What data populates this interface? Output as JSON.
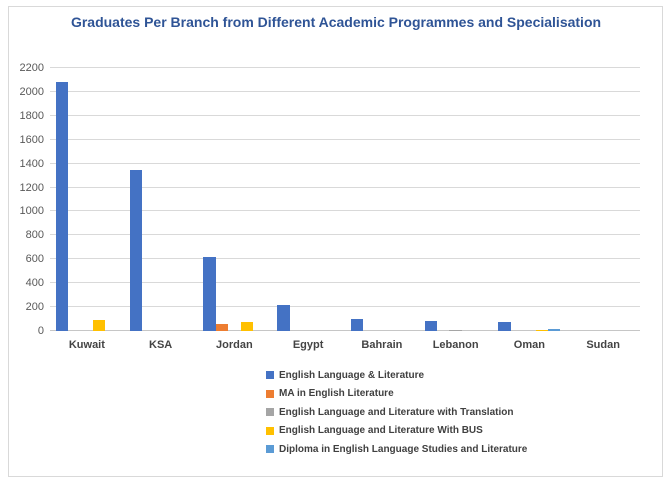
{
  "title": "Graduates Per Branch from Different Academic Programmes and Specialisation",
  "chart_data": {
    "type": "bar",
    "title": "Graduates Per Branch from Different Academic Programmes and Specialisation",
    "xlabel": "",
    "ylabel": "",
    "categories": [
      "Kuwait",
      "KSA",
      "Jordan",
      "Egypt",
      "Bahrain",
      "Lebanon",
      "Oman",
      "Sudan"
    ],
    "series": [
      {
        "name": "English Language & Literature",
        "color": "#4472C4",
        "values": [
          2085,
          1350,
          615,
          220,
          100,
          85,
          78,
          0
        ]
      },
      {
        "name": "MA in English Literature",
        "color": "#ED7D31",
        "values": [
          0,
          0,
          60,
          0,
          0,
          0,
          0,
          0
        ]
      },
      {
        "name": "English Language and Literature with Translation",
        "color": "#A5A5A5",
        "values": [
          0,
          0,
          0,
          0,
          0,
          12,
          0,
          0
        ]
      },
      {
        "name": "English Language and Literature With BUS",
        "color": "#FFC000",
        "values": [
          95,
          0,
          75,
          0,
          0,
          0,
          10,
          0
        ]
      },
      {
        "name": "Diploma in English Language Studies and Literature",
        "color": "#5B9BD5",
        "values": [
          0,
          0,
          0,
          0,
          0,
          0,
          20,
          0
        ]
      }
    ],
    "ylim": [
      0,
      2200
    ],
    "ytick_step": 200,
    "grid": true,
    "legend_position": "bottom-left-stacked"
  },
  "colors": {
    "title": "#2F5496",
    "bar_blue": "#4472C4",
    "bar_orange": "#ED7D31",
    "bar_gray": "#A5A5A5",
    "bar_yellow": "#FFC000",
    "bar_lightblue": "#5B9BD5",
    "axis_tick_label": "#595959",
    "category_label": "#444444",
    "gridline": "#D9D9D9",
    "frame_border": "#D9D9D9",
    "background": "#FFFFFF"
  }
}
